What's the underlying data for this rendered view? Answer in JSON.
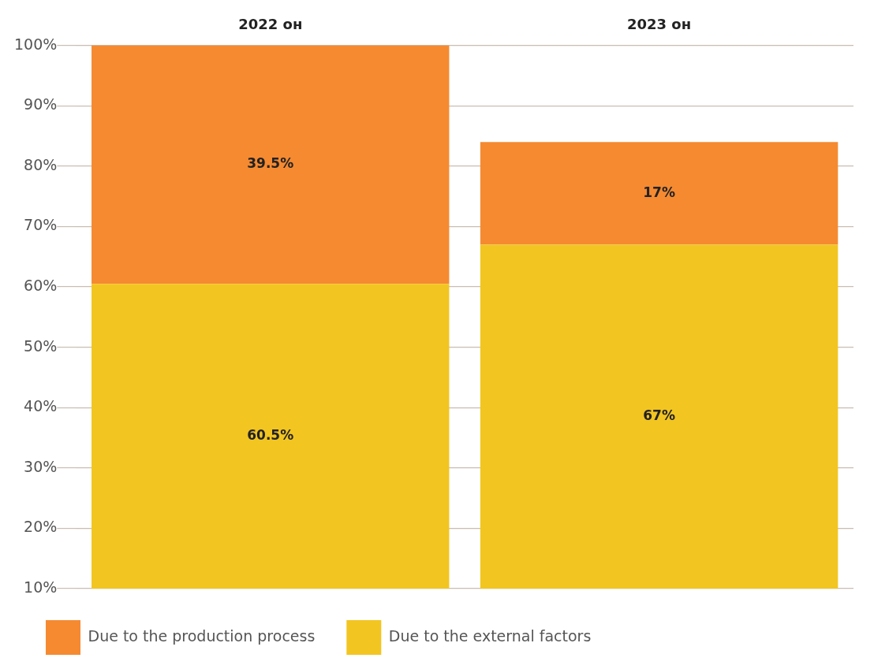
{
  "chart_data": {
    "type": "bar",
    "stacked": true,
    "categories": [
      "2022 он",
      "2023 он"
    ],
    "series": [
      {
        "name": "Due to the external factors",
        "color": "#f2c521",
        "values": [
          60.5,
          67
        ],
        "value_labels": [
          "60.5%",
          "67%"
        ]
      },
      {
        "name": "Due to the production process",
        "color": "#f58a31",
        "values": [
          39.5,
          17
        ],
        "value_labels": [
          "39.5%",
          "17%"
        ]
      }
    ],
    "ylim": [
      10,
      100
    ],
    "yticks": [
      {
        "value": 10,
        "label": "10%"
      },
      {
        "value": 20,
        "label": "20%"
      },
      {
        "value": 30,
        "label": "30%"
      },
      {
        "value": 40,
        "label": "40%"
      },
      {
        "value": 50,
        "label": "50%"
      },
      {
        "value": 60,
        "label": "60%"
      },
      {
        "value": 70,
        "label": "70%"
      },
      {
        "value": 80,
        "label": "80%"
      },
      {
        "value": 90,
        "label": "90%"
      },
      {
        "value": 100,
        "label": "100%"
      }
    ],
    "grid": "y",
    "legend": "bottom"
  }
}
